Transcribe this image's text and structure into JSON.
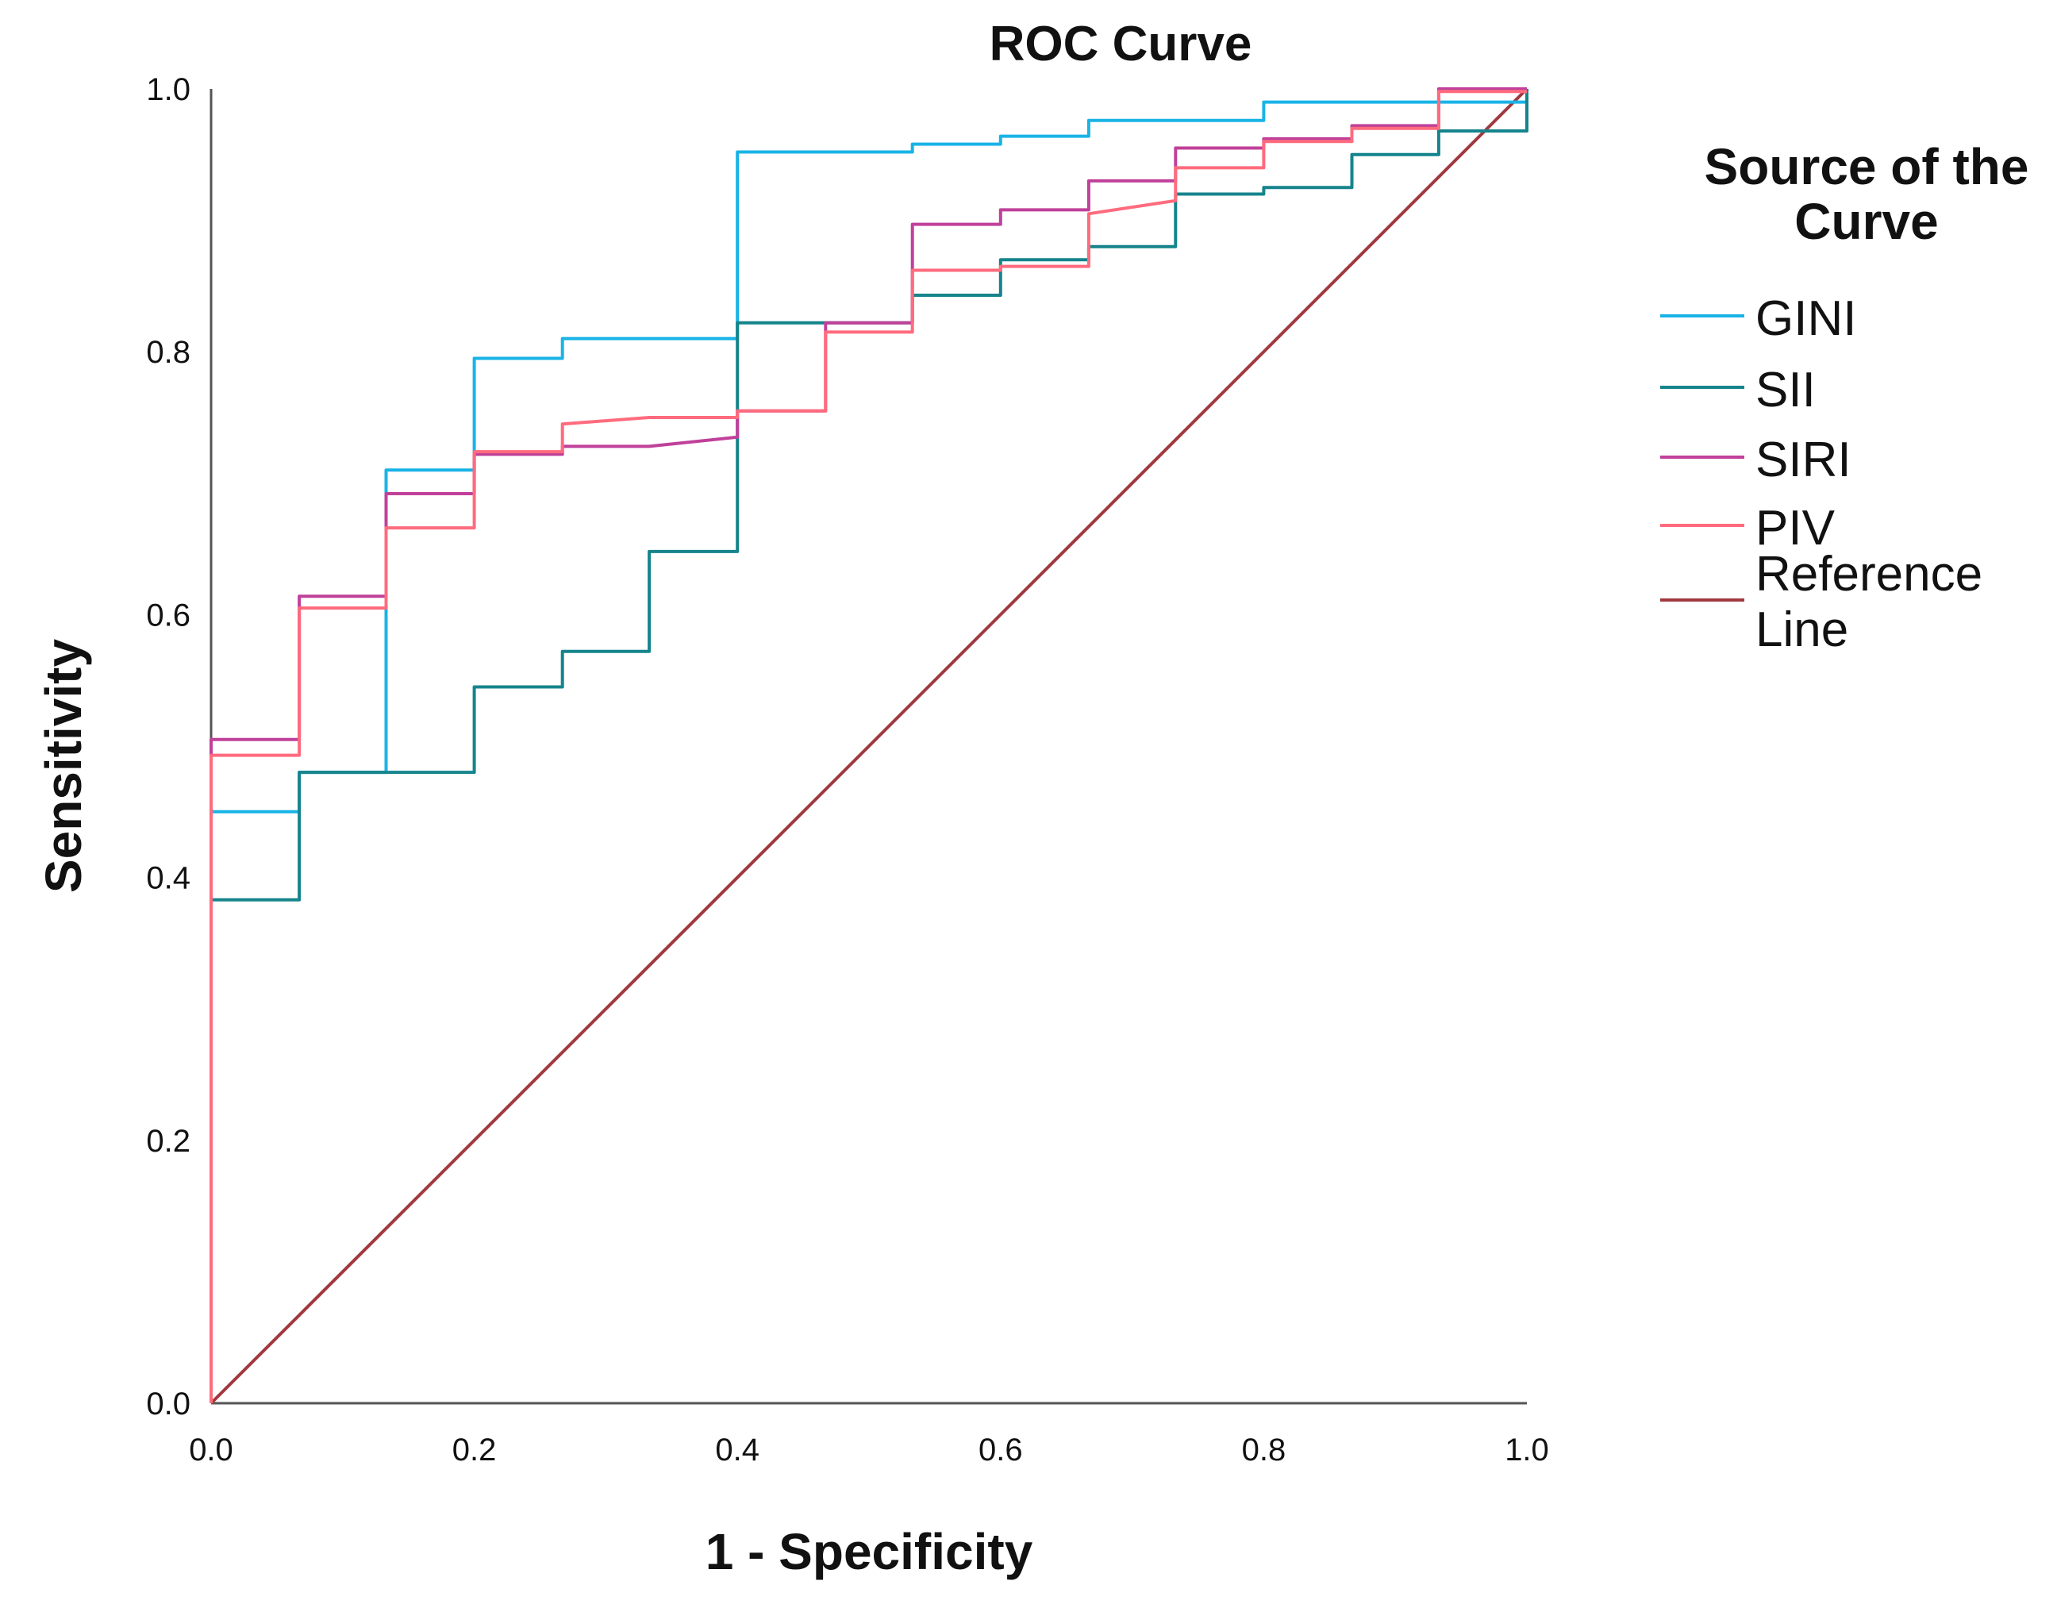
{
  "chart_data": {
    "type": "line",
    "title": "ROC Curve",
    "xlabel": "1 - Specificity",
    "ylabel": "Sensitivity",
    "xlim": [
      0,
      1
    ],
    "ylim": [
      0,
      1
    ],
    "xticks": [
      "0.0",
      "0.2",
      "0.4",
      "0.6",
      "0.8",
      "1.0"
    ],
    "yticks": [
      "0.0",
      "0.2",
      "0.4",
      "0.6",
      "0.8",
      "1.0"
    ],
    "grid": false,
    "legend": {
      "title_lines": [
        "Source of the",
        "Curve"
      ],
      "position": "right"
    },
    "series": [
      {
        "name": "GINI",
        "color": "#19b3e6",
        "points": [
          [
            0,
            0
          ],
          [
            0,
            0.45
          ],
          [
            0.067,
            0.45
          ],
          [
            0.067,
            0.48
          ],
          [
            0.133,
            0.48
          ],
          [
            0.133,
            0.71
          ],
          [
            0.2,
            0.71
          ],
          [
            0.2,
            0.795
          ],
          [
            0.267,
            0.795
          ],
          [
            0.267,
            0.81
          ],
          [
            0.4,
            0.81
          ],
          [
            0.4,
            0.952
          ],
          [
            0.533,
            0.952
          ],
          [
            0.533,
            0.958
          ],
          [
            0.6,
            0.958
          ],
          [
            0.6,
            0.964
          ],
          [
            0.667,
            0.964
          ],
          [
            0.667,
            0.976
          ],
          [
            0.8,
            0.976
          ],
          [
            0.8,
            0.99
          ],
          [
            1,
            0.99
          ],
          [
            1,
            1
          ]
        ]
      },
      {
        "name": "SII",
        "color": "#15848c",
        "points": [
          [
            0,
            0
          ],
          [
            0,
            0.383
          ],
          [
            0.067,
            0.383
          ],
          [
            0.067,
            0.48
          ],
          [
            0.2,
            0.48
          ],
          [
            0.2,
            0.545
          ],
          [
            0.267,
            0.545
          ],
          [
            0.267,
            0.572
          ],
          [
            0.333,
            0.572
          ],
          [
            0.333,
            0.648
          ],
          [
            0.4,
            0.648
          ],
          [
            0.4,
            0.822
          ],
          [
            0.533,
            0.822
          ],
          [
            0.533,
            0.843
          ],
          [
            0.6,
            0.843
          ],
          [
            0.6,
            0.87
          ],
          [
            0.667,
            0.87
          ],
          [
            0.667,
            0.88
          ],
          [
            0.733,
            0.88
          ],
          [
            0.733,
            0.92
          ],
          [
            0.8,
            0.92
          ],
          [
            0.8,
            0.925
          ],
          [
            0.867,
            0.925
          ],
          [
            0.867,
            0.95
          ],
          [
            0.933,
            0.95
          ],
          [
            0.933,
            0.968
          ],
          [
            1,
            0.968
          ],
          [
            1,
            1
          ]
        ]
      },
      {
        "name": "SIRI",
        "color": "#c0409a",
        "points": [
          [
            0,
            0
          ],
          [
            0,
            0.505
          ],
          [
            0.067,
            0.505
          ],
          [
            0.067,
            0.614
          ],
          [
            0.133,
            0.614
          ],
          [
            0.133,
            0.692
          ],
          [
            0.2,
            0.692
          ],
          [
            0.2,
            0.722
          ],
          [
            0.267,
            0.722
          ],
          [
            0.267,
            0.728
          ],
          [
            0.333,
            0.728
          ],
          [
            0.4,
            0.735
          ],
          [
            0.4,
            0.755
          ],
          [
            0.467,
            0.755
          ],
          [
            0.467,
            0.822
          ],
          [
            0.533,
            0.822
          ],
          [
            0.533,
            0.897
          ],
          [
            0.6,
            0.897
          ],
          [
            0.6,
            0.908
          ],
          [
            0.667,
            0.908
          ],
          [
            0.667,
            0.93
          ],
          [
            0.733,
            0.93
          ],
          [
            0.733,
            0.955
          ],
          [
            0.8,
            0.955
          ],
          [
            0.8,
            0.962
          ],
          [
            0.867,
            0.962
          ],
          [
            0.867,
            0.972
          ],
          [
            0.933,
            0.972
          ],
          [
            0.933,
            1
          ],
          [
            1,
            1
          ]
        ]
      },
      {
        "name": "PIV",
        "color": "#ff6b7d",
        "points": [
          [
            0,
            0
          ],
          [
            0,
            0.493
          ],
          [
            0.067,
            0.493
          ],
          [
            0.067,
            0.605
          ],
          [
            0.133,
            0.605
          ],
          [
            0.133,
            0.666
          ],
          [
            0.2,
            0.666
          ],
          [
            0.2,
            0.724
          ],
          [
            0.267,
            0.724
          ],
          [
            0.267,
            0.745
          ],
          [
            0.333,
            0.75
          ],
          [
            0.4,
            0.75
          ],
          [
            0.4,
            0.755
          ],
          [
            0.467,
            0.755
          ],
          [
            0.467,
            0.815
          ],
          [
            0.533,
            0.815
          ],
          [
            0.533,
            0.862
          ],
          [
            0.6,
            0.862
          ],
          [
            0.6,
            0.865
          ],
          [
            0.667,
            0.865
          ],
          [
            0.667,
            0.905
          ],
          [
            0.733,
            0.915
          ],
          [
            0.733,
            0.94
          ],
          [
            0.8,
            0.94
          ],
          [
            0.8,
            0.96
          ],
          [
            0.867,
            0.96
          ],
          [
            0.867,
            0.97
          ],
          [
            0.933,
            0.97
          ],
          [
            0.933,
            0.998
          ],
          [
            1,
            0.998
          ]
        ]
      },
      {
        "name": "Reference Line",
        "color": "#a0393f",
        "points": [
          [
            0,
            0
          ],
          [
            1,
            1
          ]
        ]
      }
    ]
  }
}
